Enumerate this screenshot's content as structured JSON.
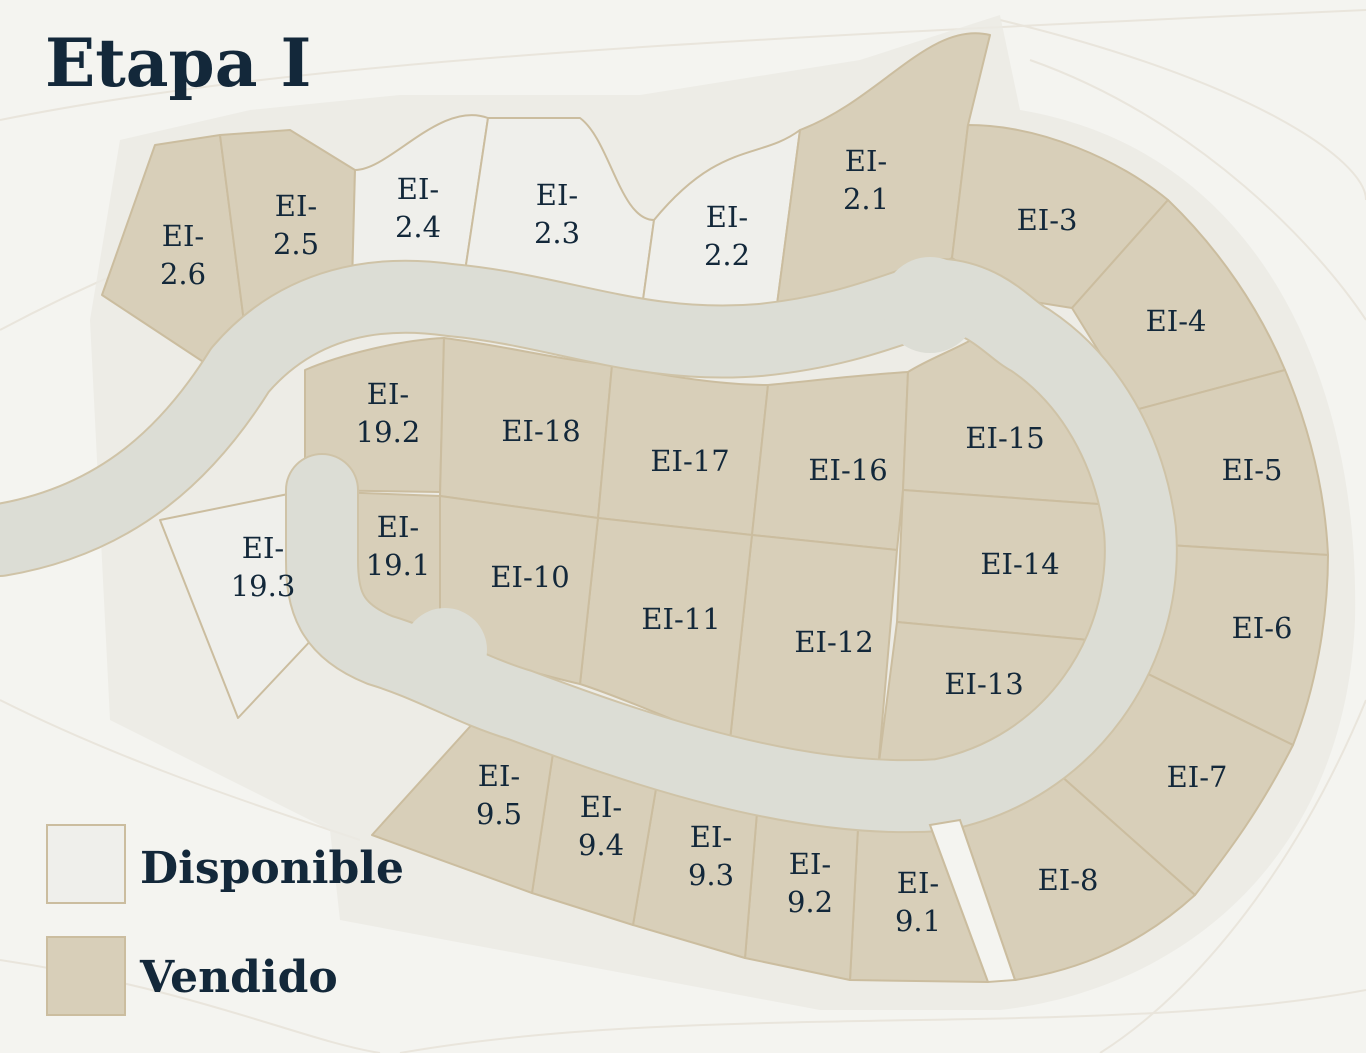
{
  "title": "Etapa I",
  "colors": {
    "available": "#efefeb",
    "sold": "#d8cfb9",
    "border": "#cbbd9f",
    "road": "#dcddd5",
    "text": "#13283a"
  },
  "legend": {
    "available": "Disponible",
    "sold": "Vendido"
  },
  "lots": [
    {
      "id": "EI-2.6",
      "status": "sold",
      "label": [
        "EI-",
        "2.6"
      ]
    },
    {
      "id": "EI-2.5",
      "status": "sold",
      "label": [
        "EI-",
        "2.5"
      ]
    },
    {
      "id": "EI-2.4",
      "status": "available",
      "label": [
        "EI-",
        "2.4"
      ]
    },
    {
      "id": "EI-2.3",
      "status": "available",
      "label": [
        "EI-",
        "2.3"
      ]
    },
    {
      "id": "EI-2.2",
      "status": "available",
      "label": [
        "EI-",
        "2.2"
      ]
    },
    {
      "id": "EI-2.1",
      "status": "sold",
      "label": [
        "EI-",
        "2.1"
      ]
    },
    {
      "id": "EI-3",
      "status": "sold",
      "label": [
        "EI-3"
      ]
    },
    {
      "id": "EI-4",
      "status": "sold",
      "label": [
        "EI-4"
      ]
    },
    {
      "id": "EI-5",
      "status": "sold",
      "label": [
        "EI-5"
      ]
    },
    {
      "id": "EI-6",
      "status": "sold",
      "label": [
        "EI-6"
      ]
    },
    {
      "id": "EI-7",
      "status": "sold",
      "label": [
        "EI-7"
      ]
    },
    {
      "id": "EI-8",
      "status": "sold",
      "label": [
        "EI-8"
      ]
    },
    {
      "id": "EI-9.1",
      "status": "sold",
      "label": [
        "EI-",
        "9.1"
      ]
    },
    {
      "id": "EI-9.2",
      "status": "sold",
      "label": [
        "EI-",
        "9.2"
      ]
    },
    {
      "id": "EI-9.3",
      "status": "sold",
      "label": [
        "EI-",
        "9.3"
      ]
    },
    {
      "id": "EI-9.4",
      "status": "sold",
      "label": [
        "EI-",
        "9.4"
      ]
    },
    {
      "id": "EI-9.5",
      "status": "sold",
      "label": [
        "EI-",
        "9.5"
      ]
    },
    {
      "id": "EI-10",
      "status": "sold",
      "label": [
        "EI-10"
      ]
    },
    {
      "id": "EI-11",
      "status": "sold",
      "label": [
        "EI-11"
      ]
    },
    {
      "id": "EI-12",
      "status": "sold",
      "label": [
        "EI-12"
      ]
    },
    {
      "id": "EI-13",
      "status": "sold",
      "label": [
        "EI-13"
      ]
    },
    {
      "id": "EI-14",
      "status": "sold",
      "label": [
        "EI-14"
      ]
    },
    {
      "id": "EI-15",
      "status": "sold",
      "label": [
        "EI-15"
      ]
    },
    {
      "id": "EI-16",
      "status": "sold",
      "label": [
        "EI-16"
      ]
    },
    {
      "id": "EI-17",
      "status": "sold",
      "label": [
        "EI-17"
      ]
    },
    {
      "id": "EI-18",
      "status": "sold",
      "label": [
        "EI-18"
      ]
    },
    {
      "id": "EI-19.1",
      "status": "sold",
      "label": [
        "EI-",
        "19.1"
      ]
    },
    {
      "id": "EI-19.2",
      "status": "sold",
      "label": [
        "EI-",
        "19.2"
      ]
    },
    {
      "id": "EI-19.3",
      "status": "available",
      "label": [
        "EI-",
        "19.3"
      ]
    }
  ]
}
